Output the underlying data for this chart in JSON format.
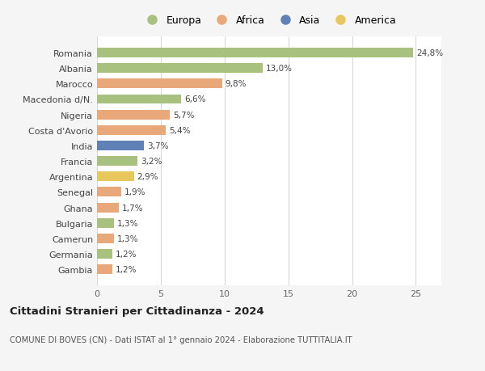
{
  "countries": [
    "Romania",
    "Albania",
    "Marocco",
    "Macedonia d/N.",
    "Nigeria",
    "Costa d'Avorio",
    "India",
    "Francia",
    "Argentina",
    "Senegal",
    "Ghana",
    "Bulgaria",
    "Camerun",
    "Germania",
    "Gambia"
  ],
  "values": [
    24.8,
    13.0,
    9.8,
    6.6,
    5.7,
    5.4,
    3.7,
    3.2,
    2.9,
    1.9,
    1.7,
    1.3,
    1.3,
    1.2,
    1.2
  ],
  "labels": [
    "24,8%",
    "13,0%",
    "9,8%",
    "6,6%",
    "5,7%",
    "5,4%",
    "3,7%",
    "3,2%",
    "2,9%",
    "1,9%",
    "1,7%",
    "1,3%",
    "1,3%",
    "1,2%",
    "1,2%"
  ],
  "colors": [
    "#a8c17e",
    "#a8c17e",
    "#e8a87a",
    "#a8c17e",
    "#e8a87a",
    "#e8a87a",
    "#6080b8",
    "#a8c17e",
    "#e8c85c",
    "#e8a87a",
    "#e8a87a",
    "#a8c17e",
    "#e8a87a",
    "#a8c17e",
    "#e8a87a"
  ],
  "legend": [
    "Europa",
    "Africa",
    "Asia",
    "America"
  ],
  "legend_colors": [
    "#a8c17e",
    "#e8a87a",
    "#6080b8",
    "#e8c85c"
  ],
  "xlim": [
    0,
    27
  ],
  "xticks": [
    0,
    5,
    10,
    15,
    20,
    25
  ],
  "title": "Cittadini Stranieri per Cittadinanza - 2024",
  "subtitle": "COMUNE DI BOVES (CN) - Dati ISTAT al 1° gennaio 2024 - Elaborazione TUTTITALIA.IT",
  "bg_color": "#f5f5f5",
  "plot_bg_color": "#ffffff",
  "grid_color": "#d8d8d8",
  "bar_height": 0.62
}
